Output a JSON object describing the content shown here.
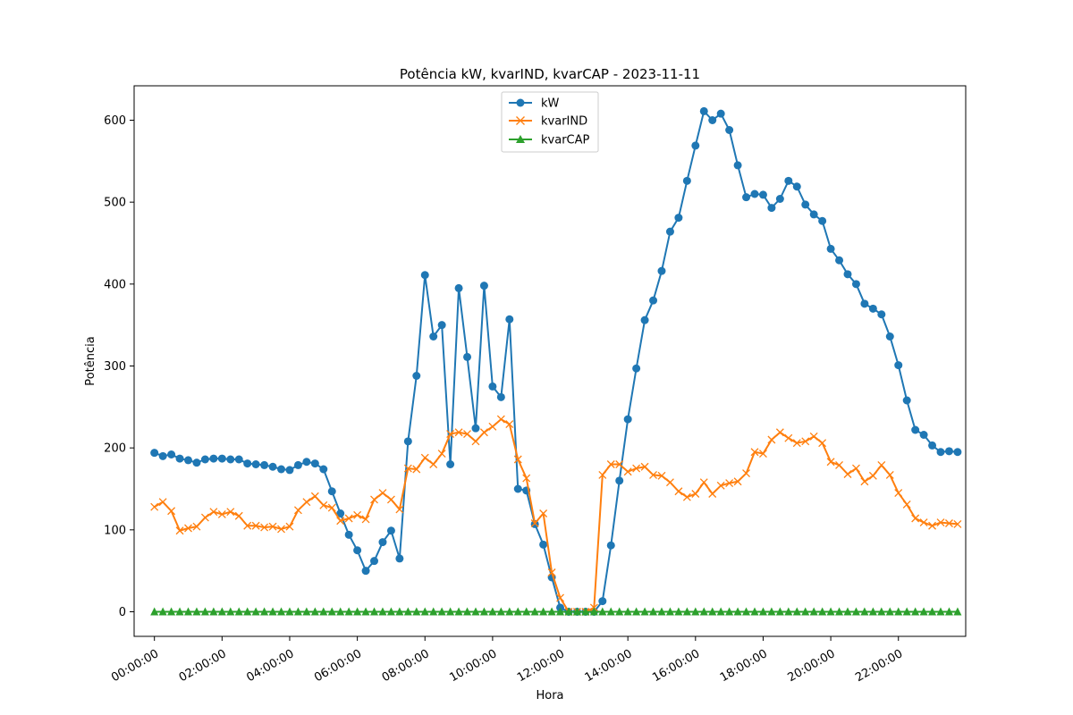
{
  "chart_data": {
    "type": "line",
    "title": "Potência kW, kvarIND, kvarCAP - 2023-11-11",
    "xlabel": "Hora",
    "ylabel": "Potência",
    "x_ticks": [
      "00:00:00",
      "02:00:00",
      "04:00:00",
      "06:00:00",
      "08:00:00",
      "10:00:00",
      "12:00:00",
      "14:00:00",
      "16:00:00",
      "18:00:00",
      "20:00:00",
      "22:00:00"
    ],
    "y_ticks": [
      "0",
      "100",
      "200",
      "300",
      "400",
      "500",
      "600"
    ],
    "xlim_hours": [
      -0.6,
      23.99
    ],
    "ylim": [
      -30,
      642
    ],
    "x_hours": [
      0,
      0.25,
      0.5,
      0.75,
      1,
      1.25,
      1.5,
      1.75,
      2,
      2.25,
      2.5,
      2.75,
      3,
      3.25,
      3.5,
      3.75,
      4,
      4.25,
      4.5,
      4.75,
      5,
      5.25,
      5.5,
      5.75,
      6,
      6.25,
      6.5,
      6.75,
      7,
      7.25,
      7.5,
      7.75,
      8,
      8.25,
      8.5,
      8.75,
      9,
      9.25,
      9.5,
      9.75,
      10,
      10.25,
      10.5,
      10.75,
      11,
      11.25,
      11.5,
      11.75,
      12,
      12.25,
      12.5,
      12.75,
      13,
      13.25,
      13.5,
      13.75,
      14,
      14.25,
      14.5,
      14.75,
      15,
      15.25,
      15.5,
      15.75,
      16,
      16.25,
      16.5,
      16.75,
      17,
      17.25,
      17.5,
      17.75,
      18,
      18.25,
      18.5,
      18.75,
      19,
      19.25,
      19.5,
      19.75,
      20,
      20.25,
      20.5,
      20.75,
      21,
      21.25,
      21.5,
      21.75,
      22,
      22.25,
      22.5,
      22.75,
      23,
      23.25,
      23.5,
      23.75
    ],
    "series": [
      {
        "name": "kW",
        "color": "#1f77b4",
        "marker": "circle",
        "values": [
          194,
          190,
          192,
          187,
          185,
          182,
          186,
          187,
          187,
          186,
          186,
          181,
          180,
          179,
          177,
          174,
          173,
          179,
          183,
          181,
          174,
          147,
          120,
          94,
          75,
          50,
          62,
          85,
          99,
          65,
          208,
          288,
          411,
          336,
          350,
          180,
          395,
          311,
          224,
          398,
          275,
          262,
          357,
          150,
          148,
          107,
          82,
          42,
          5,
          0,
          0,
          0,
          0,
          13,
          81,
          160,
          235,
          297,
          356,
          380,
          416,
          464,
          481,
          526,
          569,
          611,
          600,
          608,
          588,
          545,
          506,
          510,
          509,
          493,
          504,
          526,
          519,
          497,
          485,
          477,
          443,
          429,
          412,
          400,
          376,
          370,
          363,
          336,
          301,
          258,
          222,
          216,
          203,
          195,
          196,
          195
        ]
      },
      {
        "name": "kvarIND",
        "color": "#ff7f0e",
        "marker": "x",
        "values": [
          128,
          134,
          123,
          99,
          102,
          104,
          115,
          122,
          119,
          122,
          117,
          105,
          105,
          103,
          104,
          101,
          104,
          124,
          134,
          141,
          130,
          127,
          111,
          114,
          118,
          113,
          137,
          145,
          137,
          125,
          175,
          174,
          188,
          180,
          193,
          217,
          219,
          217,
          208,
          219,
          226,
          235,
          229,
          186,
          163,
          108,
          120,
          48,
          17,
          0,
          0,
          0,
          5,
          167,
          180,
          180,
          171,
          175,
          177,
          167,
          166,
          158,
          147,
          140,
          144,
          158,
          144,
          154,
          157,
          159,
          169,
          195,
          193,
          210,
          219,
          212,
          206,
          208,
          214,
          206,
          183,
          179,
          168,
          175,
          159,
          166,
          179,
          167,
          145,
          131,
          114,
          109,
          105,
          109,
          108,
          107
        ]
      },
      {
        "name": "kvarCAP",
        "color": "#2ca02c",
        "marker": "triangle",
        "values": [
          0,
          0,
          0,
          0,
          0,
          0,
          0,
          0,
          0,
          0,
          0,
          0,
          0,
          0,
          0,
          0,
          0,
          0,
          0,
          0,
          0,
          0,
          0,
          0,
          0,
          0,
          0,
          0,
          0,
          0,
          0,
          0,
          0,
          0,
          0,
          0,
          0,
          0,
          0,
          0,
          0,
          0,
          0,
          0,
          0,
          0,
          0,
          0,
          0,
          0,
          0,
          0,
          0,
          0,
          0,
          0,
          0,
          0,
          0,
          0,
          0,
          0,
          0,
          0,
          0,
          0,
          0,
          0,
          0,
          0,
          0,
          0,
          0,
          0,
          0,
          0,
          0,
          0,
          0,
          0,
          0,
          0,
          0,
          0,
          0,
          0,
          0,
          0,
          0,
          0,
          0,
          0,
          0,
          0,
          0,
          0
        ]
      }
    ],
    "legend_position": "upper center",
    "grid": false
  }
}
